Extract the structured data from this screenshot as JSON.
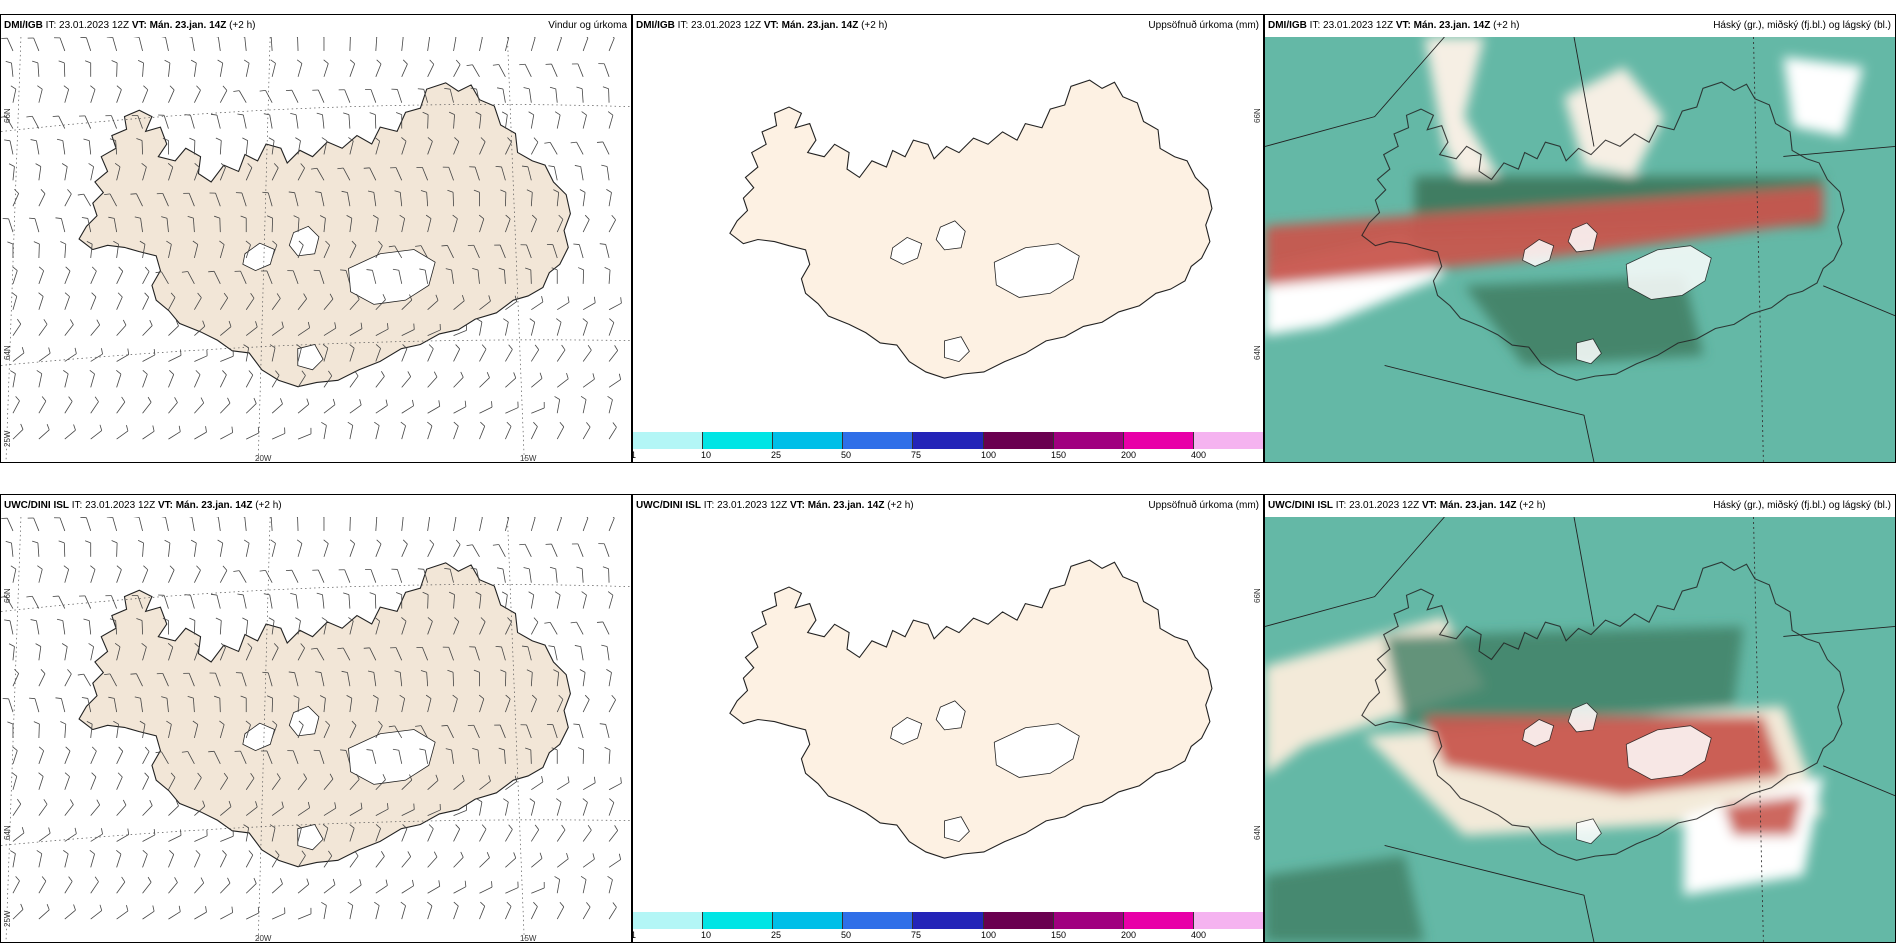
{
  "rows": [
    {
      "panels": [
        {
          "id": "r1p1",
          "src": "DMI/IGB",
          "it": " IT: 23.01.2023 12Z ",
          "vt": "VT: Mán. 23.jan. 14Z",
          "lead": " (+2 h)",
          "right": "Vindur og úrkoma",
          "type": "wind"
        },
        {
          "id": "r1p2",
          "src": "DMI/IGB",
          "it": " IT: 23.01.2023 12Z ",
          "vt": "VT: Mán. 23.jan. 14Z",
          "lead": " (+2 h)",
          "right": "Uppsöfnuð úrkoma (mm)",
          "type": "precip"
        },
        {
          "id": "r1p3",
          "src": "DMI/IGB",
          "it": " IT: 23.01.2023 12Z ",
          "vt": "VT: Mán. 23.jan. 14Z",
          "lead": " (+2 h)",
          "right": "Háský (gr.), miðský (fj.bl.) og lágský (bl.)",
          "type": "cloud"
        }
      ]
    },
    {
      "panels": [
        {
          "id": "r2p1",
          "src": "UWC/DINI ISL",
          "it": " IT: 23.01.2023 12Z ",
          "vt": "VT: Mán. 23.jan. 14Z",
          "lead": " (+2 h)",
          "right": "",
          "type": "wind"
        },
        {
          "id": "r2p2",
          "src": "UWC/DINI ISL",
          "it": " IT: 23.01.2023 12Z ",
          "vt": "VT: Mán. 23.jan. 14Z",
          "lead": " (+2 h)",
          "right": "Uppsöfnuð úrkoma (mm)",
          "type": "precip"
        },
        {
          "id": "r2p3",
          "src": "UWC/DINI ISL",
          "it": " IT: 23.01.2023 12Z ",
          "vt": "VT: Mán. 23.jan. 14Z",
          "lead": " (+2 h)",
          "right": "Háský (gr.), miðský (fj.bl.) og lágský (bl.)",
          "type": "cloud"
        }
      ]
    }
  ],
  "wind_axis_labels": {
    "lat_66": "66N",
    "lat_64": "64N",
    "lon_25": "25W",
    "lon_20": "20W",
    "lon_15": "15W"
  },
  "precip_axis_labels": {
    "lat_66": "66N",
    "lat_64": "64N"
  },
  "colorbar": {
    "colors": [
      "#b3f6f6",
      "#00e5e5",
      "#00bfe8",
      "#2f6fe8",
      "#2424b8",
      "#6a0050",
      "#a0007f",
      "#e800a8",
      "#f5b3f0"
    ],
    "labels": [
      "1",
      "10",
      "25",
      "50",
      "75",
      "100",
      "150",
      "200",
      "400"
    ]
  },
  "colors": {
    "land_wind": "#f2e6d7",
    "land_precip": "#fdf1e3",
    "cloud_sea": "#64b8a6",
    "cloud_dark": "#3f7d62",
    "cloud_red": "#c8564e"
  }
}
